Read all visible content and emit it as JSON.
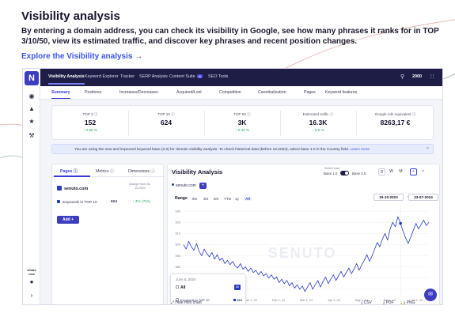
{
  "hero": {
    "title": "Visibility analysis",
    "description": "By entering a domain address, you can check its visibility in Google, see how many phrases it ranks for in TOP 3/10/50, view its estimated traffic, and discover key phrases and recent position changes.",
    "link": "Explore the Visibility analysis →"
  },
  "sidebar": {
    "logo": "N",
    "icons": [
      "eye-icon",
      "trophy-icon",
      "star-icon",
      "tools-icon"
    ],
    "whats_new": "whats new",
    "bottom_icons": [
      "pin-icon",
      "expand-icon"
    ]
  },
  "topnav": {
    "items": [
      "Visibility Analysis",
      "Keyword Explorer",
      "Tracker",
      "SERP Analysis",
      "Content Suite",
      "SEO Tools"
    ],
    "new_badge": "AI",
    "credits": "2000"
  },
  "subtabs": [
    "Summary",
    "Positions",
    "Increases/Decreases",
    "Acquired/Lost",
    "Competition",
    "Cannibalization",
    "Pages",
    "Keyword features"
  ],
  "stats": [
    {
      "label": "TOP 3 ⓘ",
      "value": "152",
      "delta": "↑ 0.66 %"
    },
    {
      "label": "TOP 10 ⓘ",
      "value": "624",
      "delta": ""
    },
    {
      "label": "TOP 50 ⓘ",
      "value": "3K",
      "delta": "↑ 0.33 %"
    },
    {
      "label": "Estimated traffic ⓘ",
      "value": "16.3K",
      "delta": "↑ 0.0 %"
    },
    {
      "label": "Google Ads equivalent ⓘ",
      "value": "8263,17 €",
      "delta": ""
    }
  ],
  "info": {
    "text": "You are using the new and improved keyword base (2.0) for domain visibility analysis. To check historical data (before 10.2023), select base 1.0 in the Country field.",
    "link": "Learn more",
    "close": "×"
  },
  "left_panel": {
    "tabs": [
      "Pages ⓘ",
      "Metrics ⓘ",
      "Dimensions ⓘ"
    ],
    "domain": "senuto.com",
    "change_from": "change from 30-10-2023",
    "keywords_label": "Keywords in TOP 10",
    "keywords_value": "624",
    "keywords_delta": "↑ 4% (711)",
    "add_button": "Add +"
  },
  "chart_panel": {
    "title": "Visibility Analysis",
    "domain": "senuto.com",
    "plus": "+",
    "switch_label": "Switch base",
    "base1": "Base 1.0",
    "base2": "Base 2.0",
    "periods": [
      "D",
      "W",
      "M"
    ],
    "range_label": "Range",
    "ranges": [
      "6m",
      "3m",
      "6m",
      "YTD",
      "1y",
      "All"
    ],
    "date_from": "19-10-2023",
    "date_to": "23-07-2024",
    "date_sep": "–",
    "watermark": "SENUTO"
  },
  "tooltip": {
    "date": "June 5, 2024",
    "all": "All",
    "chip": "All",
    "row_label": "Keywords in TOP 10",
    "row_value": "610"
  },
  "bottom": {
    "hide_chart": "⤢ Hide mini chart",
    "csv": "⤓ CSV",
    "pdf": "⤓ PDF",
    "png": "⤓ PNG"
  },
  "chart_data": {
    "type": "line",
    "title": "Visibility Analysis",
    "xlabel": "",
    "ylabel": "",
    "x_ticks": [
      "Nov 1, 23",
      "Dec 1, 23",
      "Jan 1, 24",
      "Feb 1, 24",
      "Mar 1, 24",
      "Apr 1, 24",
      "May 1, 24",
      "Jun 1, 24",
      "Jul 1, 24"
    ],
    "y_ticks": [
      560,
      570,
      580,
      590,
      600,
      610,
      620,
      630
    ],
    "ylim": [
      555,
      635
    ],
    "series": [
      {
        "name": "",
        "color": "#2a3ac8",
        "values": [
          600,
          596,
          603,
          598,
          595,
          601,
          594,
          590,
          596,
          592,
          589,
          593,
          587,
          591,
          586,
          588,
          583,
          586,
          582,
          585,
          581,
          579,
          583,
          578,
          580,
          576,
          579,
          575,
          577,
          573,
          576,
          572,
          574,
          570,
          573,
          569,
          571,
          566,
          569,
          565,
          568,
          563,
          566,
          561,
          564,
          560,
          563,
          558,
          562,
          566,
          560,
          564,
          568,
          562,
          567,
          571,
          565,
          569,
          573,
          568,
          572,
          576,
          571,
          575,
          579,
          574,
          578,
          583,
          577,
          582,
          586,
          591,
          585,
          590,
          596,
          602,
          598,
          605,
          610,
          604,
          614,
          620,
          616,
          625,
          619,
          612,
          606,
          601,
          607,
          613,
          619,
          614,
          618,
          622,
          617,
          620
        ]
      }
    ],
    "grid": true,
    "legend": "none"
  },
  "colors": {
    "accent": "#3c3dbf",
    "topbar": "#1d1d46",
    "positive": "#22a35a",
    "line": "#2a3ac8"
  }
}
